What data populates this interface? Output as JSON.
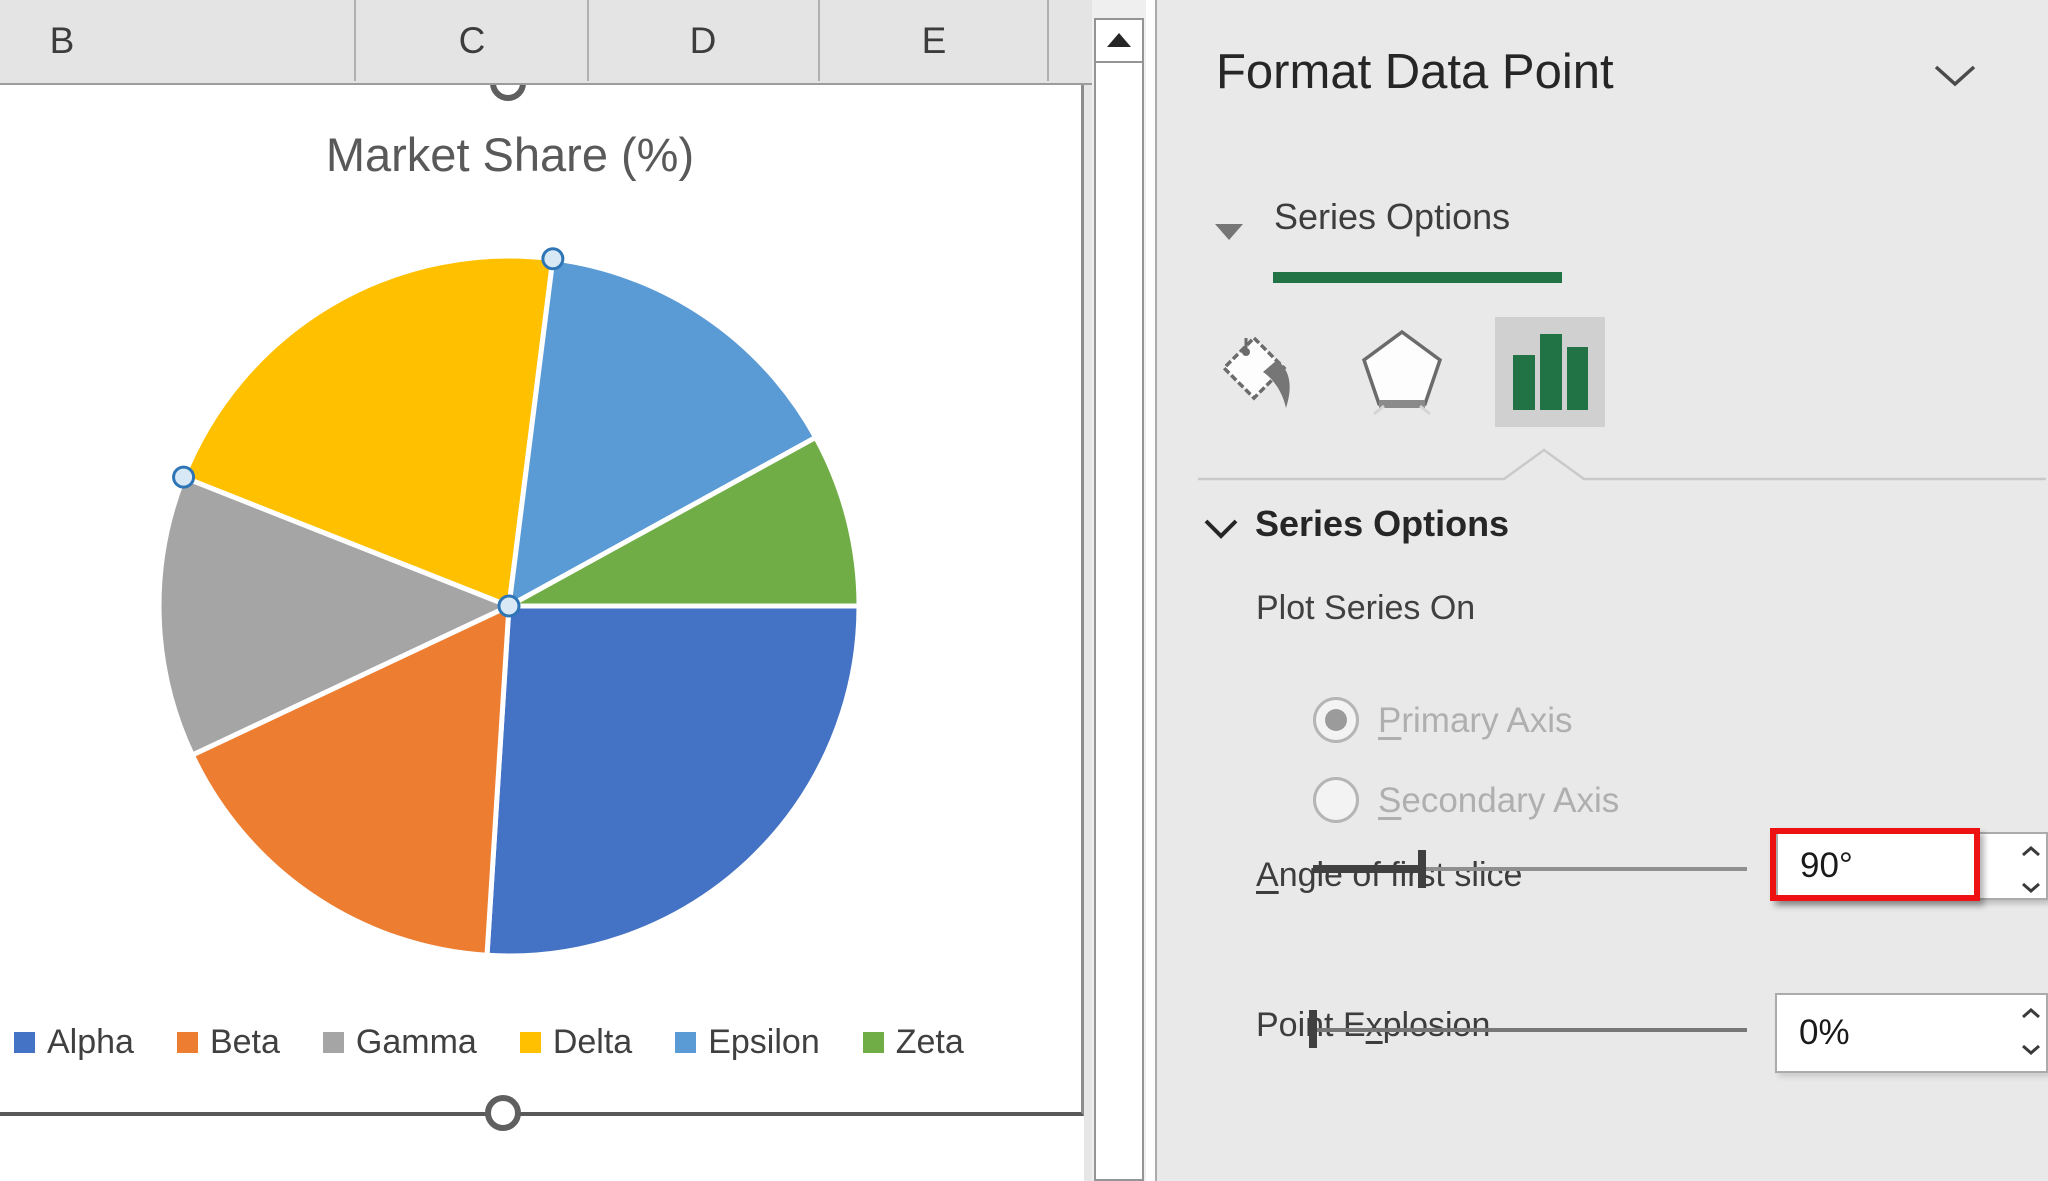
{
  "spreadsheet": {
    "column_headers": [
      "B",
      "C",
      "D",
      "E"
    ]
  },
  "chart_data": {
    "type": "pie",
    "title": "Market Share (%)",
    "categories": [
      "Alpha",
      "Beta",
      "Gamma",
      "Delta",
      "Epsilon",
      "Zeta"
    ],
    "values": [
      26,
      17,
      13,
      21,
      15,
      8
    ],
    "colors": [
      "#4472C4",
      "#ED7D31",
      "#A5A5A5",
      "#FFC000",
      "#5B9BD5",
      "#70AD47"
    ],
    "start_angle_deg": 90,
    "selected_point": "Delta",
    "legend_position": "bottom",
    "units": "%"
  },
  "format_pane": {
    "title": "Format Data Point",
    "tab": {
      "label": "Series Options"
    },
    "icon_tabs": [
      {
        "name": "fill-and-line",
        "selected": false
      },
      {
        "name": "effects",
        "selected": false
      },
      {
        "name": "series-options",
        "selected": true
      }
    ],
    "section": {
      "label": "Series Options"
    },
    "plot_series_on": {
      "label": "Plot Series On",
      "options": [
        {
          "mn": "P",
          "rest": "rimary Axis",
          "selected": true,
          "disabled": true
        },
        {
          "mn": "S",
          "rest": "econdary Axis",
          "selected": false,
          "disabled": true
        }
      ]
    },
    "angle_of_first_slice": {
      "mn": "A",
      "rest": "ngle of first slice",
      "value": "90°",
      "slider_pct": 25,
      "highlighted": true
    },
    "point_explosion": {
      "pre": "Point E",
      "mn": "x",
      "rest": "plosion",
      "value": "0%",
      "slider_pct": 0
    }
  },
  "colors": {
    "accent_green": "#217346",
    "annotation_red": "#EE1111",
    "selection_handle_fill": "#D9E8F5",
    "selection_handle_border": "#2E75B6"
  }
}
